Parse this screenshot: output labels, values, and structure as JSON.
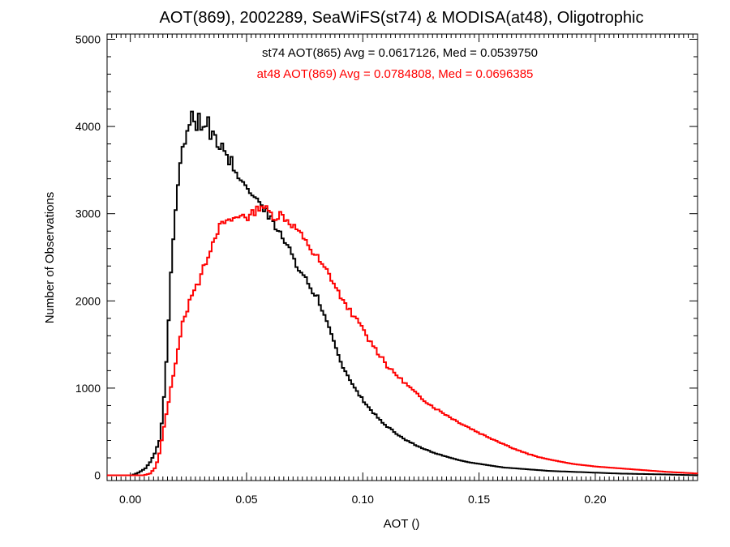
{
  "chart_data": {
    "type": "line",
    "title": "AOT(869), 2002289, SeaWiFS(st74) & MODISA(at48), Oligotrophic",
    "xlabel": "AOT ()",
    "ylabel": "Number of Observations",
    "xlim": [
      -0.01,
      0.244
    ],
    "ylim": [
      -60,
      5060
    ],
    "x_ticks": [
      0.0,
      0.05,
      0.1,
      0.15,
      0.2
    ],
    "x_tick_labels": [
      "0.00",
      "0.05",
      "0.10",
      "0.15",
      "0.20"
    ],
    "y_ticks": [
      0,
      1000,
      2000,
      3000,
      4000,
      5000
    ],
    "y_tick_labels": [
      "0",
      "1000",
      "2000",
      "3000",
      "4000",
      "5000"
    ],
    "grid": false,
    "annotations": [
      {
        "text": "st74 AOT(865) Avg = 0.0617126, Med = 0.0539750",
        "color": "#000000"
      },
      {
        "text": "at48 AOT(869) Avg = 0.0784808, Med = 0.0696385",
        "color": "#ff0000"
      }
    ],
    "series": [
      {
        "color": "#000000",
        "x": [
          -0.01,
          0.0,
          0.003,
          0.006,
          0.008,
          0.01,
          0.012,
          0.013,
          0.014,
          0.015,
          0.016,
          0.017,
          0.018,
          0.019,
          0.02,
          0.021,
          0.022,
          0.023,
          0.024,
          0.025,
          0.026,
          0.027,
          0.028,
          0.029,
          0.03,
          0.031,
          0.032,
          0.033,
          0.034,
          0.035,
          0.036,
          0.037,
          0.038,
          0.039,
          0.04,
          0.041,
          0.042,
          0.043,
          0.044,
          0.045,
          0.046,
          0.047,
          0.048,
          0.049,
          0.05,
          0.051,
          0.052,
          0.053,
          0.054,
          0.055,
          0.056,
          0.057,
          0.058,
          0.059,
          0.06,
          0.062,
          0.064,
          0.066,
          0.068,
          0.07,
          0.072,
          0.074,
          0.076,
          0.078,
          0.08,
          0.082,
          0.084,
          0.086,
          0.088,
          0.09,
          0.092,
          0.094,
          0.096,
          0.098,
          0.1,
          0.102,
          0.104,
          0.106,
          0.108,
          0.11,
          0.112,
          0.114,
          0.116,
          0.118,
          0.12,
          0.122,
          0.124,
          0.126,
          0.128,
          0.13,
          0.135,
          0.14,
          0.145,
          0.15,
          0.155,
          0.16,
          0.17,
          0.18,
          0.19,
          0.2,
          0.21,
          0.22,
          0.23,
          0.244
        ],
        "y": [
          0,
          0,
          30,
          80,
          150,
          250,
          400,
          600,
          900,
          1300,
          1800,
          2300,
          2700,
          3050,
          3350,
          3550,
          3750,
          3850,
          3950,
          4050,
          4150,
          4100,
          3950,
          4150,
          4000,
          4050,
          3950,
          4050,
          3900,
          3950,
          3850,
          3800,
          3750,
          3800,
          3700,
          3700,
          3600,
          3600,
          3500,
          3500,
          3400,
          3400,
          3400,
          3300,
          3300,
          3250,
          3250,
          3150,
          3200,
          3100,
          3100,
          3050,
          3050,
          2950,
          2950,
          2850,
          2800,
          2700,
          2600,
          2450,
          2350,
          2300,
          2200,
          2100,
          2050,
          1900,
          1750,
          1600,
          1450,
          1300,
          1200,
          1100,
          1000,
          920,
          850,
          780,
          720,
          660,
          600,
          560,
          520,
          480,
          440,
          400,
          380,
          350,
          330,
          300,
          280,
          260,
          220,
          180,
          150,
          130,
          110,
          90,
          70,
          50,
          40,
          30,
          20,
          15,
          10,
          0
        ]
      },
      {
        "color": "#ff0000",
        "x": [
          -0.01,
          0.0,
          0.005,
          0.008,
          0.01,
          0.011,
          0.012,
          0.013,
          0.014,
          0.015,
          0.016,
          0.017,
          0.018,
          0.019,
          0.02,
          0.021,
          0.022,
          0.023,
          0.024,
          0.025,
          0.026,
          0.027,
          0.028,
          0.029,
          0.03,
          0.032,
          0.034,
          0.036,
          0.038,
          0.04,
          0.042,
          0.044,
          0.046,
          0.048,
          0.05,
          0.052,
          0.054,
          0.056,
          0.058,
          0.06,
          0.062,
          0.064,
          0.066,
          0.068,
          0.07,
          0.072,
          0.074,
          0.076,
          0.078,
          0.08,
          0.082,
          0.084,
          0.086,
          0.088,
          0.09,
          0.092,
          0.094,
          0.096,
          0.098,
          0.1,
          0.102,
          0.104,
          0.106,
          0.108,
          0.11,
          0.112,
          0.114,
          0.116,
          0.118,
          0.12,
          0.122,
          0.124,
          0.126,
          0.128,
          0.13,
          0.135,
          0.14,
          0.145,
          0.15,
          0.155,
          0.16,
          0.165,
          0.17,
          0.175,
          0.18,
          0.19,
          0.2,
          0.21,
          0.22,
          0.23,
          0.244
        ],
        "y": [
          0,
          0,
          0,
          20,
          80,
          150,
          250,
          400,
          550,
          700,
          850,
          1000,
          1150,
          1300,
          1450,
          1600,
          1750,
          1800,
          1900,
          2000,
          2050,
          2150,
          2200,
          2200,
          2300,
          2450,
          2600,
          2750,
          2850,
          2900,
          2900,
          2950,
          2950,
          3000,
          2950,
          3000,
          3050,
          3100,
          3050,
          3000,
          2950,
          3000,
          2950,
          2900,
          2850,
          2800,
          2700,
          2650,
          2550,
          2500,
          2400,
          2350,
          2250,
          2150,
          2050,
          1950,
          1900,
          1800,
          1750,
          1650,
          1550,
          1500,
          1400,
          1350,
          1250,
          1200,
          1150,
          1100,
          1050,
          1000,
          950,
          900,
          860,
          820,
          780,
          700,
          620,
          550,
          480,
          420,
          360,
          300,
          250,
          210,
          180,
          130,
          100,
          80,
          60,
          40,
          20
        ]
      }
    ]
  }
}
